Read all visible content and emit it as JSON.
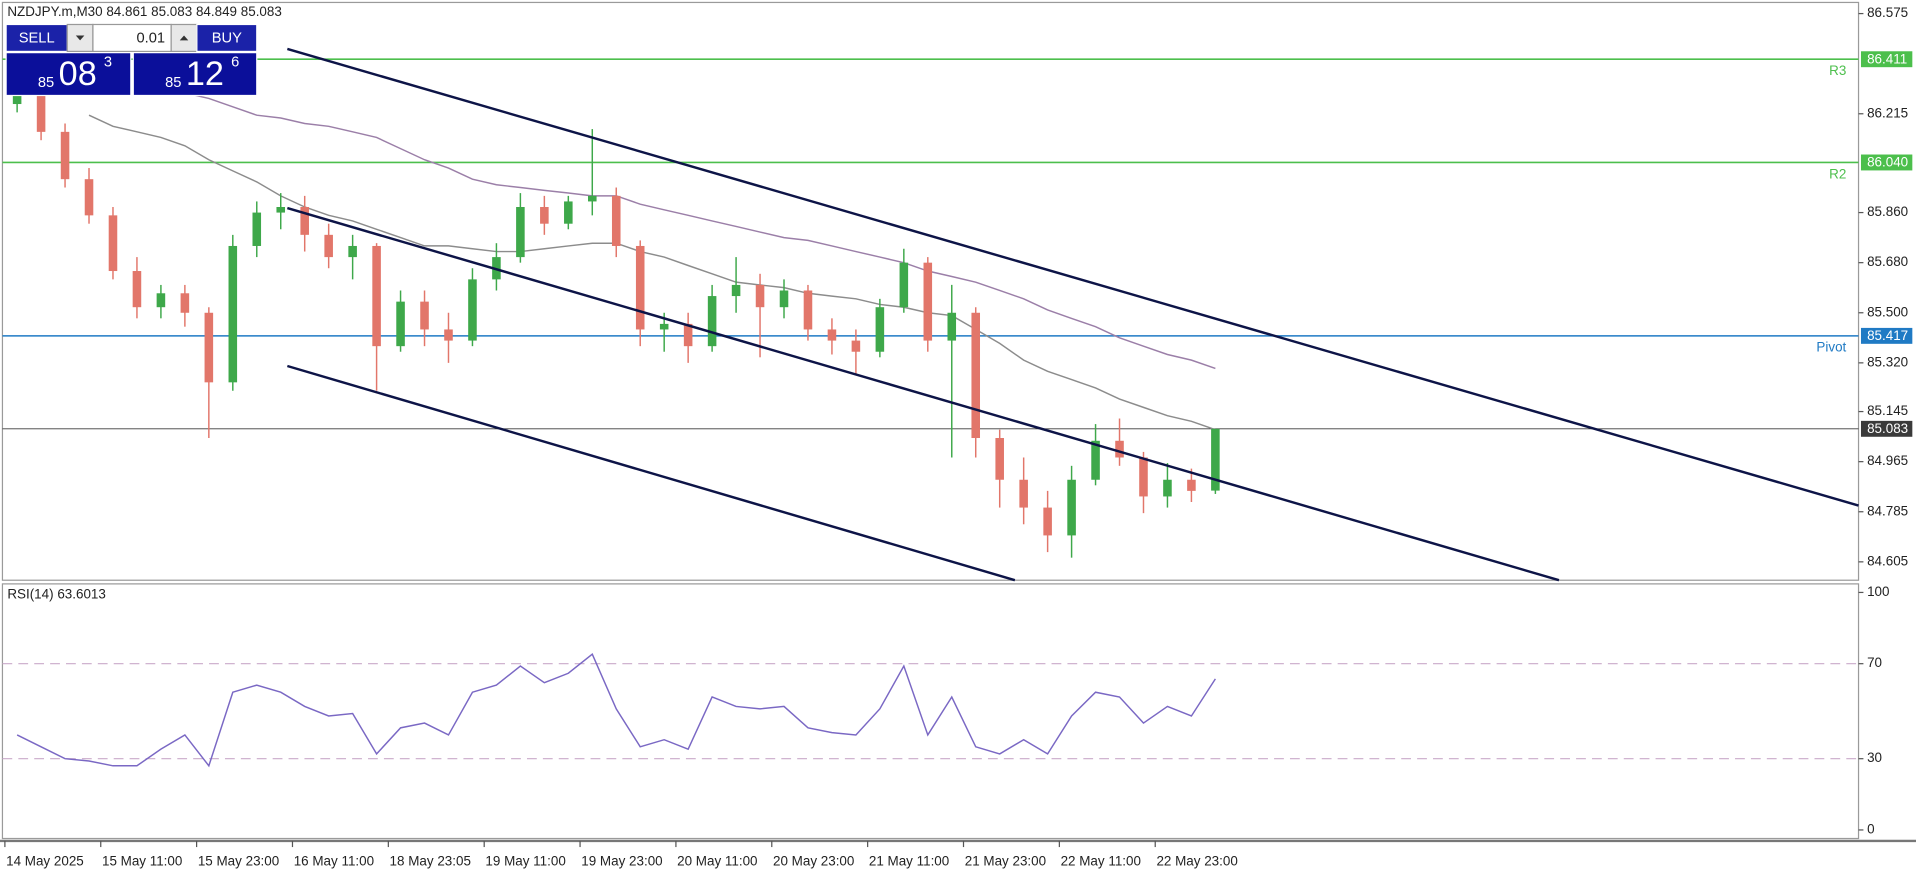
{
  "trade_panel": {
    "sell": "SELL",
    "buy": "BUY",
    "lot": "0.01",
    "sell_price": {
      "big": "85",
      "mid": "08",
      "small": "3"
    },
    "buy_price": {
      "big": "85",
      "mid": "12",
      "small": "6"
    }
  },
  "chart_data": [
    {
      "type": "candlestick",
      "title": "NZDJPY.m,M30  84.861 85.083 84.849 85.083",
      "categories": [
        "14 May 2025",
        null,
        null,
        null,
        "15 May 11:00",
        null,
        null,
        null,
        "15 May 23:00",
        null,
        null,
        null,
        "16 May 11:00",
        null,
        null,
        null,
        "18 May 23:05",
        null,
        null,
        null,
        "19 May 11:00",
        null,
        null,
        null,
        "19 May 23:00",
        null,
        null,
        null,
        "20 May 11:00",
        null,
        null,
        null,
        "20 May 23:00",
        null,
        null,
        null,
        "21 May 11:00",
        null,
        null,
        null,
        "21 May 23:00",
        null,
        null,
        null,
        "22 May 11:00",
        null,
        null,
        null,
        "22 May 23:00",
        null,
        null
      ],
      "open": [
        86.25,
        86.3,
        86.15,
        85.98,
        85.85,
        85.65,
        85.52,
        85.57,
        85.5,
        85.25,
        85.74,
        85.86,
        85.88,
        85.78,
        85.7,
        85.74,
        85.38,
        85.54,
        85.44,
        85.4,
        85.62,
        85.7,
        85.88,
        85.82,
        85.9,
        85.92,
        85.74,
        85.44,
        85.46,
        85.38,
        85.56,
        85.6,
        85.52,
        85.58,
        85.44,
        85.4,
        85.36,
        85.52,
        85.68,
        85.4,
        85.5,
        85.05,
        84.9,
        84.8,
        84.7,
        84.9,
        85.04,
        84.98,
        84.84,
        84.9,
        84.861
      ],
      "high": [
        86.32,
        86.33,
        86.18,
        86.02,
        85.88,
        85.7,
        85.6,
        85.6,
        85.52,
        85.78,
        85.9,
        85.93,
        85.92,
        85.82,
        85.78,
        85.75,
        85.58,
        85.58,
        85.5,
        85.66,
        85.75,
        85.93,
        85.92,
        85.92,
        86.16,
        85.95,
        85.76,
        85.5,
        85.5,
        85.6,
        85.7,
        85.64,
        85.62,
        85.6,
        85.48,
        85.44,
        85.55,
        85.73,
        85.7,
        85.6,
        85.52,
        85.08,
        84.98,
        84.86,
        84.95,
        85.1,
        85.12,
        85.0,
        84.96,
        84.94,
        85.083
      ],
      "low": [
        86.22,
        86.12,
        85.95,
        85.82,
        85.62,
        85.48,
        85.48,
        85.45,
        85.05,
        85.22,
        85.7,
        85.8,
        85.72,
        85.66,
        85.62,
        85.22,
        85.36,
        85.38,
        85.32,
        85.38,
        85.58,
        85.68,
        85.78,
        85.8,
        85.85,
        85.7,
        85.38,
        85.36,
        85.32,
        85.36,
        85.5,
        85.34,
        85.48,
        85.4,
        85.35,
        85.28,
        85.34,
        85.5,
        85.36,
        84.98,
        84.98,
        84.8,
        84.74,
        84.64,
        84.62,
        84.88,
        84.95,
        84.78,
        84.8,
        84.82,
        84.849
      ],
      "close": [
        86.3,
        86.15,
        85.98,
        85.85,
        85.65,
        85.52,
        85.57,
        85.5,
        85.25,
        85.74,
        85.86,
        85.88,
        85.78,
        85.7,
        85.74,
        85.38,
        85.54,
        85.44,
        85.4,
        85.62,
        85.7,
        85.88,
        85.82,
        85.9,
        85.92,
        85.74,
        85.44,
        85.46,
        85.38,
        85.56,
        85.6,
        85.52,
        85.58,
        85.44,
        85.4,
        85.36,
        85.52,
        85.68,
        85.4,
        85.5,
        85.05,
        84.9,
        84.8,
        84.7,
        84.9,
        85.04,
        84.98,
        84.84,
        84.9,
        84.86,
        85.083
      ],
      "up_color": "#3ea84a",
      "down_color": "#e2766a",
      "series": [
        {
          "color": "#8c8c8c",
          "values": [
            null,
            null,
            null,
            86.21,
            86.17,
            86.15,
            86.13,
            86.1,
            86.05,
            86.01,
            85.97,
            85.92,
            85.88,
            85.85,
            85.83,
            85.8,
            85.77,
            85.74,
            85.74,
            85.73,
            85.72,
            85.72,
            85.73,
            85.74,
            85.75,
            85.75,
            85.72,
            85.7,
            85.67,
            85.64,
            85.61,
            85.6,
            85.59,
            85.57,
            85.56,
            85.55,
            85.53,
            85.52,
            85.5,
            85.49,
            85.44,
            85.39,
            85.33,
            85.29,
            85.26,
            85.23,
            85.19,
            85.16,
            85.13,
            85.11,
            85.08
          ]
        },
        {
          "color": "#9b7fa8",
          "values": [
            null,
            null,
            null,
            null,
            null,
            null,
            null,
            86.29,
            86.27,
            86.24,
            86.21,
            86.2,
            86.18,
            86.17,
            86.15,
            86.13,
            86.09,
            86.05,
            86.02,
            85.98,
            85.96,
            85.95,
            85.94,
            85.93,
            85.92,
            85.92,
            85.89,
            85.87,
            85.85,
            85.83,
            85.81,
            85.79,
            85.77,
            85.76,
            85.74,
            85.72,
            85.7,
            85.68,
            85.65,
            85.63,
            85.61,
            85.58,
            85.55,
            85.51,
            85.48,
            85.45,
            85.41,
            85.38,
            85.35,
            85.33,
            85.3
          ]
        }
      ],
      "levels": [
        {
          "name": "R3",
          "value": 86.411,
          "color": "#4cbf4c"
        },
        {
          "name": "R2",
          "value": 86.04,
          "value_label": "86.040",
          "color": "#4cbf4c"
        },
        {
          "name": "Pivot",
          "value": 85.417,
          "color": "#1f7ac4"
        },
        {
          "value": 85.083,
          "color": "#3a3a3a"
        }
      ],
      "ylim": [
        84.539,
        86.615
      ],
      "yticks": [
        86.575,
        86.215,
        {
          "value": 85.86,
          "label": "85.860"
        },
        {
          "value": 85.68,
          "label": "85.680"
        },
        {
          "value": 85.5,
          "label": "85.500"
        },
        {
          "value": 85.32,
          "label": "85.320"
        },
        85.145,
        84.965,
        84.785,
        84.605
      ]
    },
    {
      "type": "line",
      "title": "RSI(14) 63.6013",
      "series": [
        {
          "color": "#7a68c4",
          "values": [
            40,
            35,
            30,
            29,
            27,
            27,
            34,
            40,
            27,
            58,
            61,
            58,
            52,
            48,
            49,
            32,
            43,
            45,
            40,
            58,
            61,
            69,
            62,
            66,
            74,
            51,
            35,
            38,
            34,
            56,
            52,
            51,
            52,
            43,
            41,
            40,
            51,
            69,
            40,
            56,
            35,
            32,
            38,
            32,
            48,
            58,
            56,
            45,
            52,
            48,
            63.6013
          ]
        }
      ],
      "ylim": [
        -3.6,
        103.6
      ],
      "yticks": [
        0,
        30,
        70,
        100
      ],
      "grid": true
    }
  ]
}
